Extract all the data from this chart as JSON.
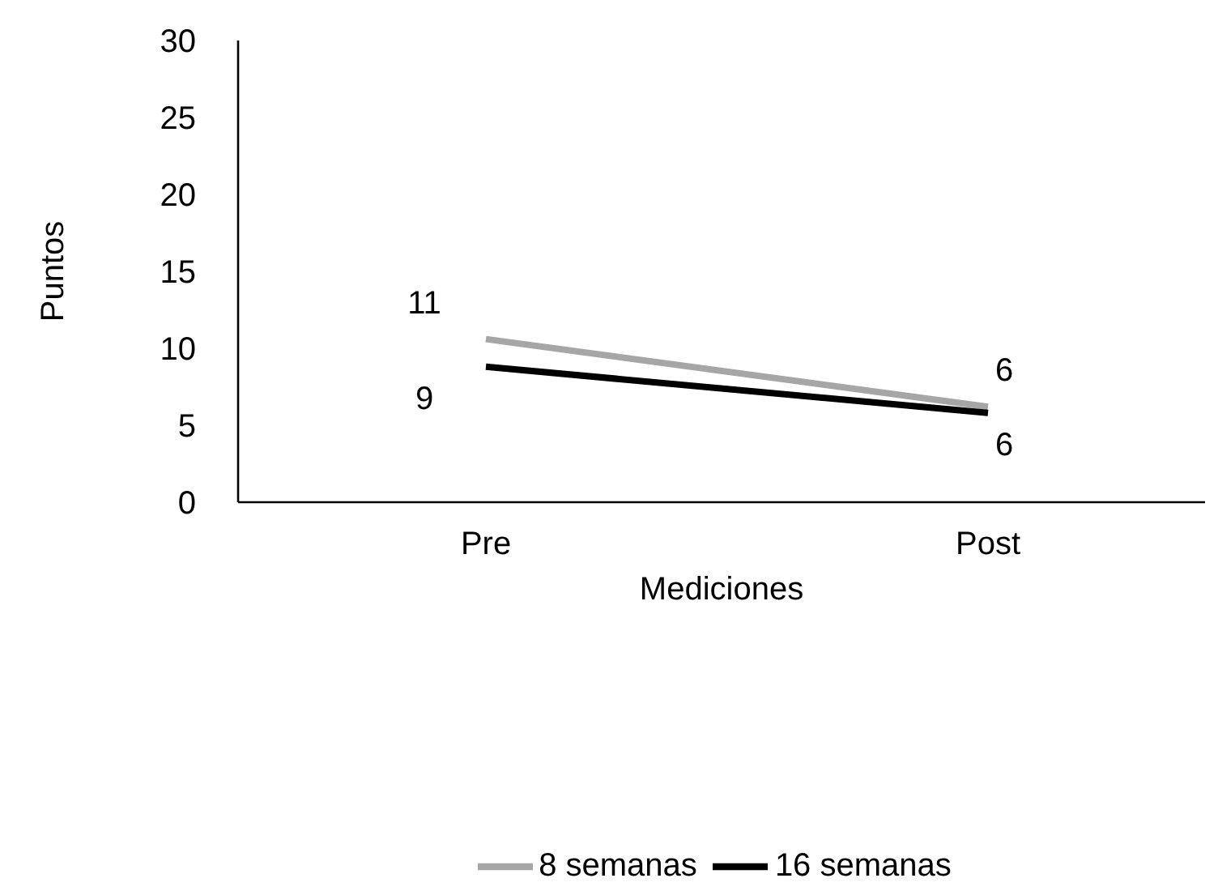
{
  "chart_data": {
    "type": "line",
    "xlabel": "Mediciones",
    "ylabel": "Puntos",
    "categories": [
      "Pre",
      "Post"
    ],
    "series": [
      {
        "name": "8 semanas",
        "color": "#a6a6a6",
        "values": [
          10.6,
          6.2
        ],
        "value_labels": [
          "11",
          "6"
        ]
      },
      {
        "name": "16 semanas",
        "color": "#000000",
        "values": [
          8.8,
          5.8
        ],
        "value_labels": [
          "9",
          "6"
        ]
      }
    ],
    "ylim": [
      0,
      30
    ],
    "yticks": [
      0,
      5,
      10,
      15,
      20,
      25,
      30
    ],
    "legend": "bottom",
    "marker": "none"
  }
}
